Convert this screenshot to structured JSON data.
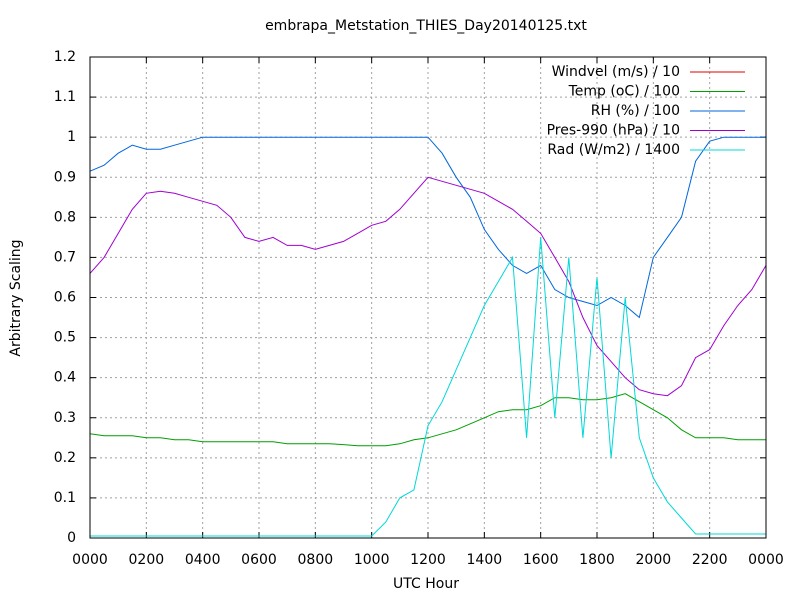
{
  "chart_data": {
    "type": "line",
    "title": "embrapa_Metstation_THIES_Day20140125.txt",
    "x_label": "UTC Hour",
    "y_label": "Arbitrary Scaling",
    "xlim": [
      0,
      24
    ],
    "xticks": [
      {
        "value": 0,
        "label": "0000"
      },
      {
        "value": 2,
        "label": "0200"
      },
      {
        "value": 4,
        "label": "0400"
      },
      {
        "value": 6,
        "label": "0600"
      },
      {
        "value": 8,
        "label": "0800"
      },
      {
        "value": 10,
        "label": "1000"
      },
      {
        "value": 12,
        "label": "1200"
      },
      {
        "value": 14,
        "label": "1400"
      },
      {
        "value": 16,
        "label": "1600"
      },
      {
        "value": 18,
        "label": "1800"
      },
      {
        "value": 20,
        "label": "2000"
      },
      {
        "value": 22,
        "label": "2200"
      },
      {
        "value": 24,
        "label": "0000"
      }
    ],
    "ylim": [
      0,
      1.2
    ],
    "yticks": [
      0,
      0.1,
      0.2,
      0.3,
      0.4,
      0.5,
      0.6,
      0.7,
      0.8,
      0.9,
      1,
      1.1,
      1.2
    ],
    "grid": true,
    "legend": "top-right",
    "x": [
      0,
      0.5,
      1,
      1.5,
      2,
      2.5,
      3,
      3.5,
      4,
      4.5,
      5,
      5.5,
      6,
      6.5,
      7,
      7.5,
      8,
      8.5,
      9,
      9.5,
      10,
      10.5,
      11,
      11.5,
      12,
      12.5,
      13,
      13.5,
      14,
      14.5,
      15,
      15.5,
      16,
      16.5,
      17,
      17.5,
      18,
      18.5,
      19,
      19.5,
      20,
      20.5,
      21,
      21.5,
      22,
      22.5,
      23,
      23.5,
      24
    ],
    "series": [
      {
        "name": "Windvel (m/s) / 10",
        "color": "#e00000",
        "values": [
          0,
          0,
          0,
          0,
          0,
          0,
          0,
          0,
          0,
          0,
          0,
          0,
          0,
          0,
          0,
          0,
          0,
          0,
          0,
          0,
          0,
          0,
          0,
          0,
          0,
          0,
          0,
          0,
          0,
          0,
          0,
          0,
          0,
          0,
          0,
          0,
          0,
          0,
          0,
          0,
          0,
          0,
          0,
          0,
          0,
          0,
          0,
          0,
          0
        ]
      },
      {
        "name": "Temp (oC) / 100",
        "color": "#00a000",
        "values": [
          0.26,
          0.255,
          0.255,
          0.255,
          0.25,
          0.25,
          0.245,
          0.245,
          0.24,
          0.24,
          0.24,
          0.24,
          0.24,
          0.24,
          0.235,
          0.235,
          0.235,
          0.235,
          0.233,
          0.23,
          0.23,
          0.23,
          0.235,
          0.245,
          0.25,
          0.26,
          0.27,
          0.285,
          0.3,
          0.315,
          0.32,
          0.32,
          0.33,
          0.35,
          0.35,
          0.345,
          0.345,
          0.35,
          0.36,
          0.34,
          0.32,
          0.3,
          0.27,
          0.25,
          0.25,
          0.25,
          0.245,
          0.245,
          0.245
        ]
      },
      {
        "name": "RH (%) / 100",
        "color": "#0066dd",
        "values": [
          0.915,
          0.93,
          0.96,
          0.98,
          0.97,
          0.97,
          0.98,
          0.99,
          1,
          1,
          1,
          1,
          1,
          1,
          1,
          1,
          1,
          1,
          1,
          1,
          1,
          1,
          1,
          1,
          1,
          0.96,
          0.9,
          0.85,
          0.77,
          0.72,
          0.68,
          0.66,
          0.68,
          0.62,
          0.6,
          0.59,
          0.58,
          0.6,
          0.58,
          0.55,
          0.7,
          0.75,
          0.8,
          0.94,
          0.99,
          1,
          1,
          1,
          1
        ]
      },
      {
        "name": "Pres-990 (hPa) / 10",
        "color": "#a000d0",
        "values": [
          0.66,
          0.7,
          0.76,
          0.82,
          0.86,
          0.865,
          0.86,
          0.85,
          0.84,
          0.83,
          0.8,
          0.75,
          0.74,
          0.75,
          0.73,
          0.73,
          0.72,
          0.73,
          0.74,
          0.76,
          0.78,
          0.79,
          0.82,
          0.86,
          0.9,
          0.89,
          0.88,
          0.87,
          0.86,
          0.84,
          0.82,
          0.79,
          0.76,
          0.7,
          0.64,
          0.55,
          0.48,
          0.44,
          0.4,
          0.37,
          0.36,
          0.355,
          0.38,
          0.45,
          0.47,
          0.53,
          0.58,
          0.62,
          0.68
        ]
      },
      {
        "name": "Rad (W/m2) / 1400",
        "color": "#00d8d8",
        "values": [
          0.005,
          0.005,
          0.005,
          0.005,
          0.005,
          0.005,
          0.005,
          0.005,
          0.005,
          0.005,
          0.005,
          0.005,
          0.005,
          0.005,
          0.005,
          0.005,
          0.005,
          0.005,
          0.005,
          0.005,
          0.005,
          0.04,
          0.1,
          0.12,
          0.28,
          0.34,
          0.42,
          0.5,
          0.58,
          0.64,
          0.7,
          0.25,
          0.75,
          0.3,
          0.7,
          0.25,
          0.65,
          0.2,
          0.6,
          0.25,
          0.15,
          0.09,
          0.05,
          0.01,
          0.01,
          0.01,
          0.01,
          0.01,
          0.01
        ]
      }
    ]
  }
}
